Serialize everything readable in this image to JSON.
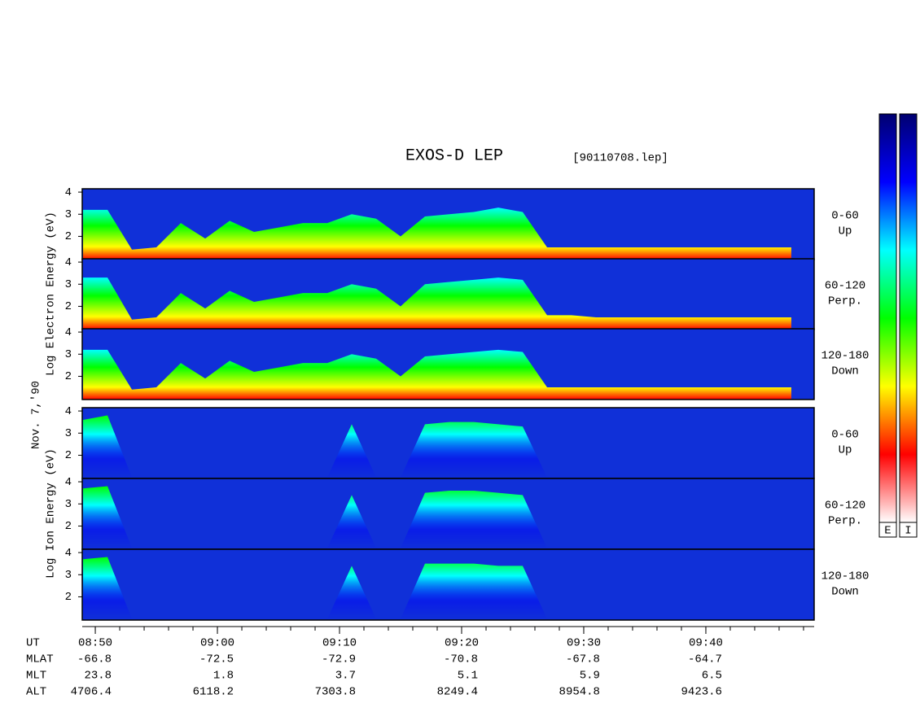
{
  "chart_data": {
    "type": "spectrogram",
    "title": "EXOS-D LEP",
    "subtitle": "[90110708.lep]",
    "date_label": "Nov. 7,'90",
    "group_labels": [
      "Log Electron Energy (eV)",
      "Log Ion Energy (eV)"
    ],
    "x_label": "UT",
    "xlim": [
      528.93,
      588.87
    ],
    "xticks": [
      {
        "value": 530,
        "label": "08:50"
      },
      {
        "value": 540,
        "label": "09:00"
      },
      {
        "value": 550,
        "label": "09:10"
      },
      {
        "value": 560,
        "label": "09:20"
      },
      {
        "value": 570,
        "label": "09:30"
      },
      {
        "value": 580,
        "label": "09:40"
      }
    ],
    "x": [
      529,
      531,
      533,
      535,
      537,
      539,
      541,
      543,
      545,
      547,
      549,
      551,
      553,
      555,
      557,
      559,
      561,
      563,
      565,
      567,
      569,
      571,
      573,
      575,
      577,
      579,
      581,
      583,
      585,
      587
    ],
    "colormap": [
      "#000070",
      "#0000ff",
      "#00ffff",
      "#00ff00",
      "#ffff00",
      "#ff0000",
      "#ffffff"
    ],
    "panels": [
      {
        "group": 0,
        "labels": [
          "0-60",
          "Up"
        ],
        "ylim": [
          0.95,
          4.15
        ],
        "yticks": [
          2,
          3,
          4
        ],
        "values": [
          3.2,
          3.2,
          1.4,
          1.5,
          2.6,
          1.9,
          2.7,
          2.2,
          2.4,
          2.6,
          2.6,
          3.0,
          2.8,
          2.0,
          2.9,
          3.0,
          3.1,
          3.3,
          3.1,
          1.5,
          1.5,
          1.5,
          1.5,
          1.5,
          1.5,
          1.5,
          1.5,
          1.5,
          1.5,
          1.5
        ]
      },
      {
        "group": 0,
        "labels": [
          "60-120",
          "Perp."
        ],
        "ylim": [
          0.95,
          4.15
        ],
        "yticks": [
          2,
          3,
          4
        ],
        "values": [
          3.3,
          3.3,
          1.4,
          1.5,
          2.6,
          1.9,
          2.7,
          2.2,
          2.4,
          2.6,
          2.6,
          3.0,
          2.8,
          2.0,
          3.0,
          3.1,
          3.2,
          3.3,
          3.2,
          1.6,
          1.6,
          1.5,
          1.5,
          1.5,
          1.5,
          1.5,
          1.5,
          1.5,
          1.5,
          1.5
        ]
      },
      {
        "group": 0,
        "labels": [
          "120-180",
          "Down"
        ],
        "ylim": [
          0.95,
          4.15
        ],
        "yticks": [
          2,
          3,
          4
        ],
        "values": [
          3.2,
          3.2,
          1.4,
          1.5,
          2.6,
          1.9,
          2.7,
          2.2,
          2.4,
          2.6,
          2.6,
          3.0,
          2.8,
          2.0,
          2.9,
          3.0,
          3.1,
          3.2,
          3.1,
          1.5,
          1.5,
          1.5,
          1.5,
          1.5,
          1.5,
          1.5,
          1.5,
          1.5,
          1.5,
          1.5
        ]
      },
      {
        "group": 1,
        "labels": [
          "0-60",
          "Up"
        ],
        "ylim": [
          0.95,
          4.15
        ],
        "yticks": [
          2,
          3,
          4
        ],
        "values": [
          3.6,
          3.8,
          1.0,
          1.0,
          1.0,
          1.0,
          1.0,
          1.0,
          1.0,
          1.0,
          1.0,
          3.4,
          1.0,
          1.0,
          3.4,
          3.5,
          3.5,
          3.4,
          3.3,
          1.0,
          1.0,
          1.0,
          1.0,
          1.0,
          1.0,
          1.0,
          1.0,
          1.0,
          1.0,
          1.0
        ]
      },
      {
        "group": 1,
        "labels": [
          "60-120",
          "Perp."
        ],
        "ylim": [
          0.95,
          4.15
        ],
        "yticks": [
          2,
          3,
          4
        ],
        "values": [
          3.7,
          3.8,
          1.0,
          1.0,
          1.0,
          1.0,
          1.0,
          1.0,
          1.0,
          1.0,
          1.0,
          3.4,
          1.0,
          1.0,
          3.5,
          3.6,
          3.6,
          3.5,
          3.4,
          1.0,
          1.0,
          1.0,
          1.0,
          1.0,
          1.0,
          1.0,
          1.0,
          1.0,
          1.0,
          1.0
        ]
      },
      {
        "group": 1,
        "labels": [
          "120-180",
          "Down"
        ],
        "ylim": [
          0.95,
          4.15
        ],
        "yticks": [
          2,
          3,
          4
        ],
        "values": [
          3.7,
          3.8,
          1.0,
          1.0,
          1.0,
          1.0,
          1.0,
          1.0,
          1.0,
          1.0,
          1.0,
          3.4,
          1.0,
          1.0,
          3.5,
          3.5,
          3.5,
          3.4,
          3.4,
          1.0,
          1.0,
          1.0,
          1.0,
          1.0,
          1.0,
          1.0,
          1.0,
          1.0,
          1.0,
          1.0
        ]
      }
    ],
    "ephemeris": [
      {
        "label": "MLAT",
        "values": [
          -66.8,
          -72.5,
          -72.9,
          -70.8,
          -67.8,
          -64.7
        ]
      },
      {
        "label": "MLT",
        "values": [
          23.8,
          1.8,
          3.7,
          5.1,
          5.9,
          6.5
        ]
      },
      {
        "label": "ALT",
        "values": [
          4706.4,
          6118.2,
          7303.8,
          8249.4,
          8954.8,
          9423.6
        ]
      }
    ],
    "colorbar_labels": [
      "E",
      "I"
    ]
  }
}
